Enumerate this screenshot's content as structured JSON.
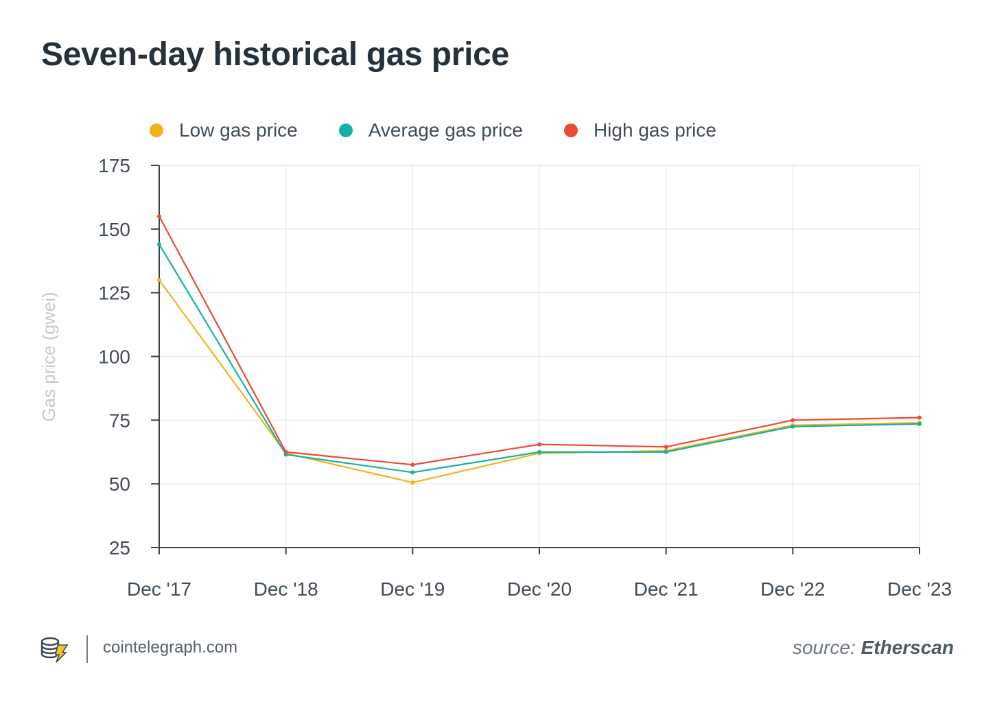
{
  "title": "Seven-day historical gas price",
  "colors": {
    "low": "#f2b31a",
    "average": "#13b2a4",
    "high": "#ec4a34",
    "grid": "#ececec",
    "axis": "#3a444b"
  },
  "chart_data": {
    "type": "line",
    "title": "Seven-day historical gas price",
    "xlabel": "",
    "ylabel": "Gas price (gwei)",
    "categories": [
      "Dec '17",
      "Dec '18",
      "Dec '19",
      "Dec '20",
      "Dec '21",
      "Dec '22",
      "Dec '23"
    ],
    "yticks": [
      25,
      50,
      75,
      100,
      125,
      150,
      175
    ],
    "ylim": [
      25,
      175
    ],
    "grid": true,
    "legend_position": "top",
    "series": [
      {
        "name": "Low gas price",
        "color": "#f2b31a",
        "values": [
          130,
          62,
          50.5,
          62,
          63,
          73,
          74
        ]
      },
      {
        "name": "Average gas price",
        "color": "#13b2a4",
        "values": [
          144,
          61.5,
          54.5,
          62.5,
          62.5,
          72.5,
          73.5
        ]
      },
      {
        "name": "High gas price",
        "color": "#ec4a34",
        "values": [
          155,
          62.5,
          57.5,
          65.5,
          64.5,
          75,
          76
        ]
      }
    ]
  },
  "legend": {
    "low": "Low gas price",
    "average": "Average gas price",
    "high": "High gas price"
  },
  "footer": {
    "site": "cointelegraph.com",
    "source_prefix": "source: ",
    "source_name": "Etherscan"
  }
}
